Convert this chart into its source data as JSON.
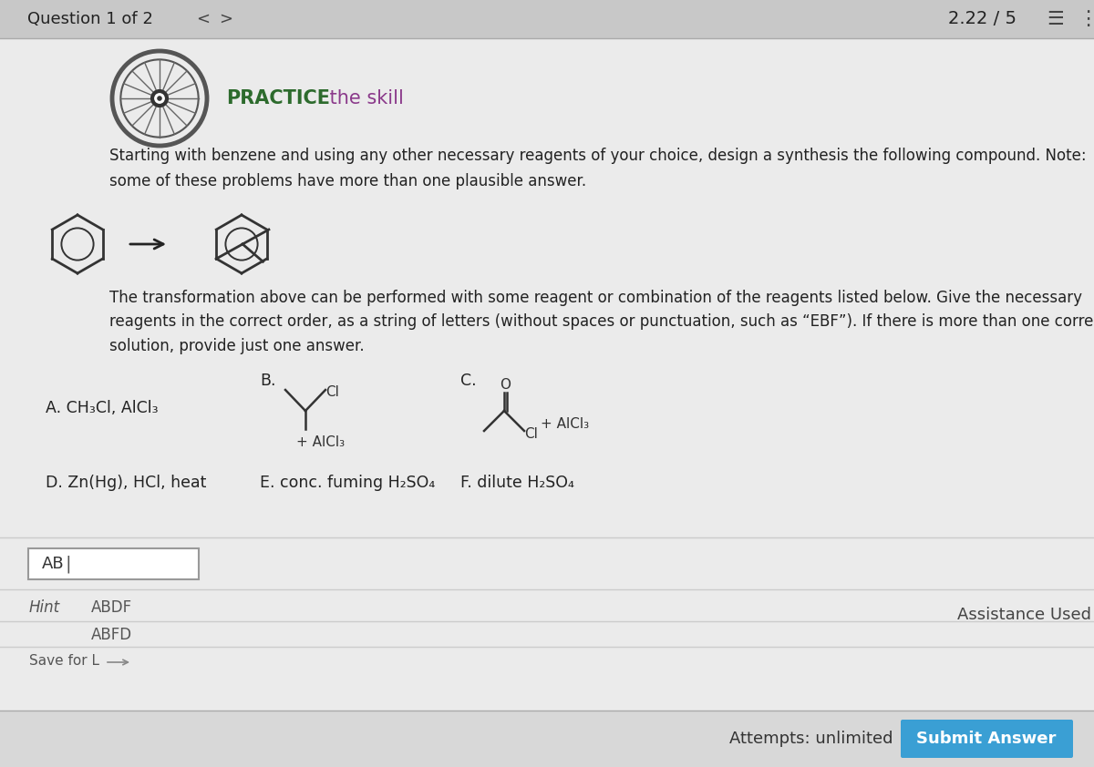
{
  "bg_color": "#d8d8d8",
  "content_bg": "#ebebeb",
  "header_bg": "#c8c8c8",
  "header_text": "Question 1 of 2",
  "score_text": "2.22 / 5",
  "practice_bold": "PRACTICE",
  "practice_normal": " the skill",
  "practice_bold_color": "#2d6b2d",
  "practice_normal_color": "#8b3a8b",
  "main_instruction": "Starting with benzene and using any other necessary reagents of your choice, design a synthesis the following compound. Note:\nsome of these problems have more than one plausible answer.",
  "transformation_text": "The transformation above can be performed with some reagent or combination of the reagents listed below. Give the necessary\nreagents in the correct order, as a string of letters (without spaces or punctuation, such as “EBF”). If there is more than one correct\nsolution, provide just one answer.",
  "reagent_A": "A. CH₃Cl, AlCl₃",
  "reagent_D": "D. Zn(Hg), HCl, heat",
  "reagent_E": "E. conc. fuming H₂SO₄",
  "reagent_F": "F. dilute H₂SO₄",
  "input_text": "AB",
  "hint_label": "Hint",
  "hint_answer1": "ABDF",
  "hint_answer2": "ABFD",
  "save_text": "Save for L",
  "assistance_text": "Assistance Used",
  "attempts_text": "Attempts: unlimited",
  "submit_text": "Submit Answer",
  "submit_bg": "#3a9fd4",
  "text_color": "#222222",
  "line_color": "#bbbbbb"
}
